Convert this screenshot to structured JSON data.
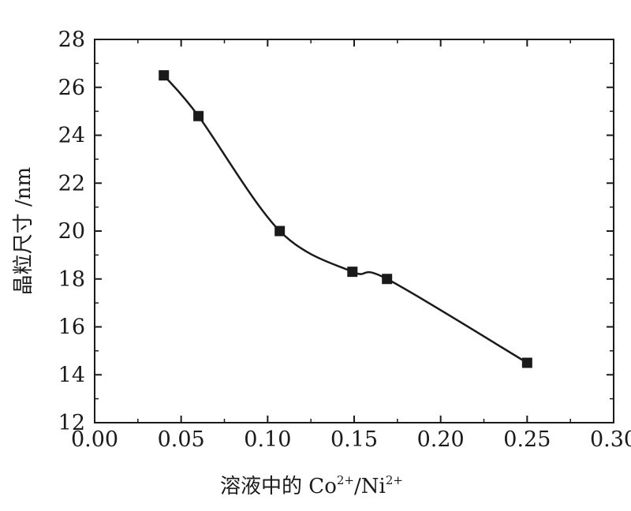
{
  "chart_data": {
    "type": "line",
    "title": "",
    "xlabel_main": "溶液中的 Co",
    "xlabel_sup1": "2+",
    "xlabel_mid": "/Ni",
    "xlabel_sup2": "2+",
    "ylabel": "晶粒尺寸 /nm",
    "xlim": [
      0.0,
      0.3
    ],
    "ylim": [
      12,
      28
    ],
    "xticks": [
      "0.00",
      "0.05",
      "0.10",
      "0.15",
      "0.20",
      "0.25",
      "0.30"
    ],
    "yticks": [
      "12",
      "14",
      "16",
      "18",
      "20",
      "22",
      "24",
      "26",
      "28"
    ],
    "grid": false,
    "legend": "none",
    "series": [
      {
        "marker": "square",
        "color": "#1a1a1a",
        "x": [
          0.04,
          0.06,
          0.107,
          0.149,
          0.169,
          0.25
        ],
        "y": [
          26.5,
          24.8,
          20.0,
          18.3,
          18.0,
          14.5
        ]
      }
    ]
  }
}
